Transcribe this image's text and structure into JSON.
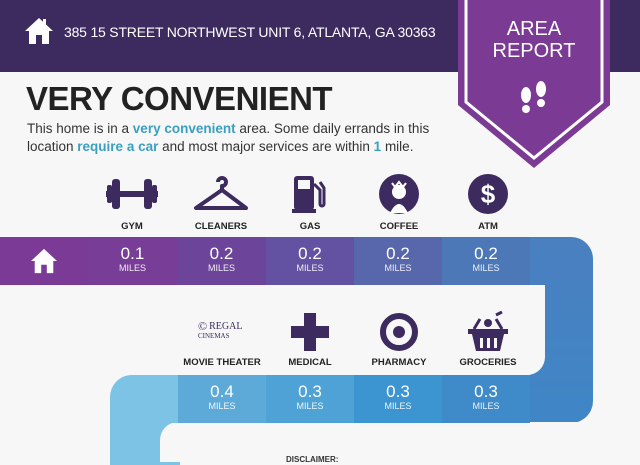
{
  "header": {
    "address": "385 15 STREET NORTHWEST UNIT 6, ATLANTA, GA 30363",
    "icon": "home-icon"
  },
  "badge": {
    "line1": "AREA",
    "line2": "REPORT",
    "icon": "footprints-icon",
    "color": "#7b3b94"
  },
  "title": "VERY CONVENIENT",
  "description": {
    "p1": "This home is in a ",
    "h1": "very convenient",
    "p2": " area. Some daily errands in this location ",
    "h2": "require a car",
    "p3": " and most major services are within ",
    "h3": "1",
    "p4": " mile."
  },
  "colors": {
    "header": "#3d2a5f",
    "accent_text": "#3aa0c0",
    "icon": "#3d2a5f"
  },
  "unit": "MILES",
  "row1": [
    {
      "label": "GYM",
      "value": "0.1",
      "icon": "dumbbell-icon"
    },
    {
      "label": "CLEANERS",
      "value": "0.2",
      "icon": "hanger-icon"
    },
    {
      "label": "GAS",
      "value": "0.2",
      "icon": "gas-pump-icon"
    },
    {
      "label": "COFFEE",
      "value": "0.2",
      "icon": "starbucks-logo-icon"
    },
    {
      "label": "ATM",
      "value": "0.2",
      "icon": "dollar-icon"
    }
  ],
  "row2": [
    {
      "label": "MOVIE THEATER",
      "value": "0.4",
      "icon": "regal-cinemas-logo",
      "logo_text": "REGAL CINEMAS"
    },
    {
      "label": "MEDICAL",
      "value": "0.3",
      "icon": "medical-cross-icon"
    },
    {
      "label": "PHARMACY",
      "value": "0.3",
      "icon": "target-icon"
    },
    {
      "label": "GROCERIES",
      "value": "0.3",
      "icon": "grocery-basket-icon"
    }
  ],
  "disclaimer": "DISCLAIMER:"
}
